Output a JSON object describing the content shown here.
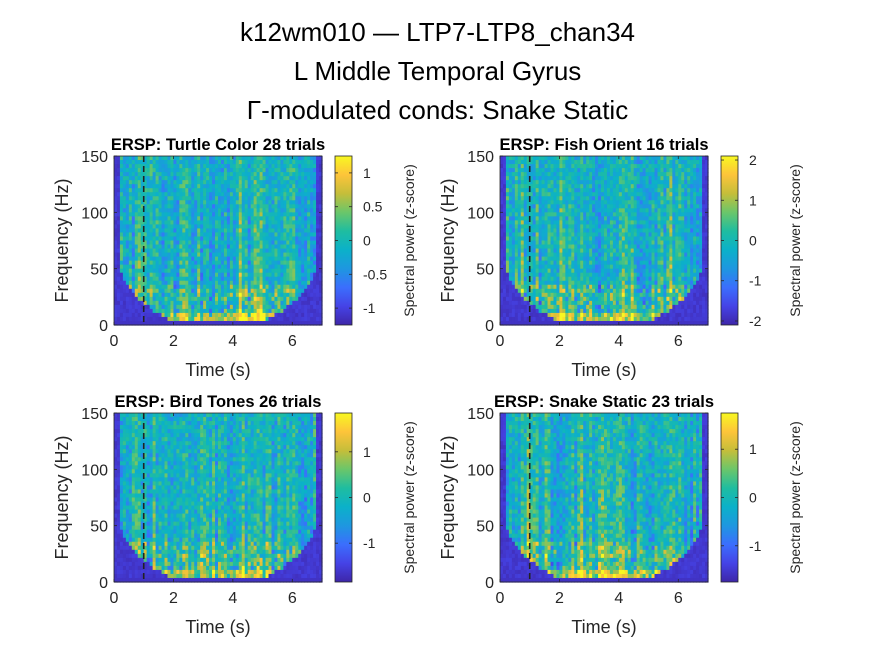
{
  "figure": {
    "title_lines": [
      "k12wm010 — LTP7-LTP8_chan34",
      "L Middle Temporal Gyrus",
      "Γ-modulated conds: Snake Static"
    ]
  },
  "colormap": [
    "#3e26a8",
    "#4543e6",
    "#3b6efd",
    "#1e97e0",
    "#0bb1c9",
    "#1fbda0",
    "#6bc66a",
    "#c5be3a",
    "#fdc43a",
    "#f8f821"
  ],
  "chart_data": [
    {
      "type": "heatmap",
      "title": "ERSP: Turtle Color 28 trials",
      "xlabel": "Time (s)",
      "ylabel": "Frequency (Hz)",
      "xlim": [
        0,
        7
      ],
      "ylim": [
        0,
        150
      ],
      "xticks": [
        "0",
        "2",
        "4",
        "6"
      ],
      "yticks": [
        "0",
        "50",
        "100",
        "150"
      ],
      "event_line_x": 1,
      "colorbar": {
        "label": "Spectral power (z-score)",
        "range": [
          -1.25,
          1.25
        ],
        "ticks": [
          {
            "value": 1,
            "label": "1"
          },
          {
            "value": 0.5,
            "label": "0.5"
          },
          {
            "value": 0,
            "label": "0"
          },
          {
            "value": -0.5,
            "label": "-0.5"
          },
          {
            "value": -1,
            "label": "-1"
          }
        ]
      }
    },
    {
      "type": "heatmap",
      "title": "ERSP: Fish Orient 16 trials",
      "xlabel": "Time (s)",
      "ylabel": "Frequency (Hz)",
      "xlim": [
        0,
        7
      ],
      "ylim": [
        0,
        150
      ],
      "xticks": [
        "0",
        "2",
        "4",
        "6"
      ],
      "yticks": [
        "0",
        "50",
        "100",
        "150"
      ],
      "event_line_x": 1,
      "colorbar": {
        "label": "Spectral power (z-score)",
        "range": [
          -2.1,
          2.1
        ],
        "ticks": [
          {
            "value": 2,
            "label": "2"
          },
          {
            "value": 1,
            "label": "1"
          },
          {
            "value": 0,
            "label": "0"
          },
          {
            "value": -1,
            "label": "-1"
          },
          {
            "value": -2,
            "label": "-2"
          }
        ]
      }
    },
    {
      "type": "heatmap",
      "title": "ERSP: Bird Tones 26 trials",
      "xlabel": "Time (s)",
      "ylabel": "Frequency (Hz)",
      "xlim": [
        0,
        7
      ],
      "ylim": [
        0,
        150
      ],
      "xticks": [
        "0",
        "2",
        "4",
        "6"
      ],
      "yticks": [
        "0",
        "50",
        "100",
        "150"
      ],
      "event_line_x": 1,
      "colorbar": {
        "label": "Spectral power (z-score)",
        "range": [
          -1.85,
          1.85
        ],
        "ticks": [
          {
            "value": 1,
            "label": "1"
          },
          {
            "value": 0,
            "label": "0"
          },
          {
            "value": -1,
            "label": "-1"
          }
        ]
      }
    },
    {
      "type": "heatmap",
      "title": "ERSP: Snake Static 23 trials",
      "xlabel": "Time (s)",
      "ylabel": "Frequency (Hz)",
      "xlim": [
        0,
        7
      ],
      "ylim": [
        0,
        150
      ],
      "xticks": [
        "0",
        "2",
        "4",
        "6"
      ],
      "yticks": [
        "0",
        "50",
        "100",
        "150"
      ],
      "event_line_x": 1,
      "colorbar": {
        "label": "Spectral power (z-score)",
        "range": [
          -1.75,
          1.75
        ],
        "ticks": [
          {
            "value": 1,
            "label": "1"
          },
          {
            "value": 0,
            "label": "0"
          },
          {
            "value": -1,
            "label": "-1"
          }
        ]
      }
    }
  ]
}
